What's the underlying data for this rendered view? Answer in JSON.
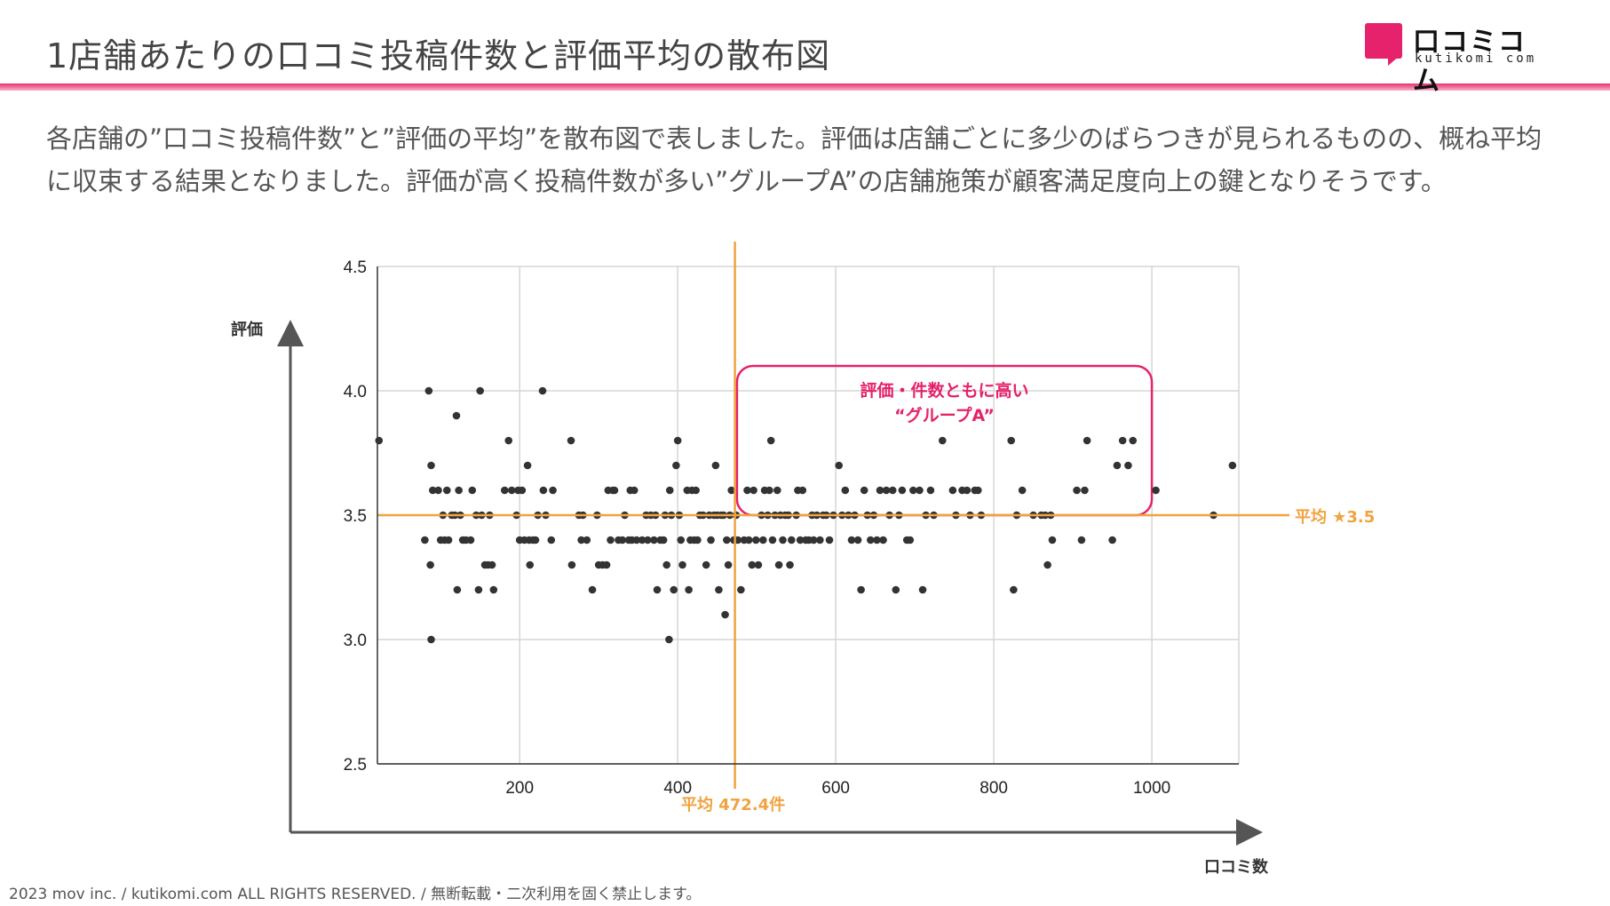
{
  "header": {
    "title": "1店舗あたりの口コミ投稿件数と評価平均の散布図",
    "logo_name": "口コミコム",
    "logo_sub": "kutikomi com",
    "accent_color": "#e5226b"
  },
  "description": "各店舗の”口コミ投稿件数”と”評価の平均”を散布図で表しました。評価は店舗ごとに多少のばらつきが見られるものの、概ね平均に収束する結果となりました。評価が高く投稿件数が多い”グループA”の店舗施策が顧客満足度向上の鍵となりそうです。",
  "footer": "2023 mov inc. / kutikomi.com ALL RIGHTS RESERVED. / 無断転載・二次利用を固く禁止します。",
  "chart_data": {
    "type": "scatter",
    "title": "",
    "xlabel": "口コミ数",
    "ylabel": "評価",
    "xlim": [
      20,
      1110
    ],
    "ylim": [
      2.5,
      4.5
    ],
    "xticks": [
      "200",
      "400",
      "600",
      "800",
      "1000"
    ],
    "yticks": [
      "2.5",
      "3.0",
      "3.5",
      "4.0",
      "4.5"
    ],
    "grid": true,
    "point_color": "#333333",
    "mean_color": "#f0a340",
    "mean_x": 472.4,
    "mean_y": 3.5,
    "mean_x_label": "平均 472.4件",
    "mean_y_label": "平均 ★3.5",
    "group_box": {
      "x0": 475,
      "x1": 1000,
      "y0": 3.5,
      "y1": 4.1,
      "color": "#e5226b"
    },
    "annotation_line1": "評価・件数ともに高い",
    "annotation_line2": "“グループA”",
    "points": [
      [
        22,
        3.8
      ],
      [
        80,
        3.4
      ],
      [
        85,
        4.0
      ],
      [
        87,
        3.3
      ],
      [
        88,
        3.7
      ],
      [
        88,
        3.0
      ],
      [
        90,
        3.6
      ],
      [
        97,
        3.6
      ],
      [
        100,
        3.4
      ],
      [
        103,
        3.5
      ],
      [
        105,
        3.4
      ],
      [
        108,
        3.6
      ],
      [
        110,
        3.4
      ],
      [
        114,
        3.5
      ],
      [
        118,
        3.5
      ],
      [
        120,
        3.9
      ],
      [
        121,
        3.2
      ],
      [
        123,
        3.6
      ],
      [
        125,
        3.5
      ],
      [
        128,
        3.4
      ],
      [
        132,
        3.4
      ],
      [
        138,
        3.4
      ],
      [
        140,
        3.6
      ],
      [
        145,
        3.5
      ],
      [
        148,
        3.2
      ],
      [
        150,
        4.0
      ],
      [
        152,
        3.5
      ],
      [
        156,
        3.3
      ],
      [
        160,
        3.3
      ],
      [
        162,
        3.5
      ],
      [
        165,
        3.3
      ],
      [
        167,
        3.2
      ],
      [
        181,
        3.6
      ],
      [
        186,
        3.8
      ],
      [
        190,
        3.6
      ],
      [
        196,
        3.5
      ],
      [
        198,
        3.6
      ],
      [
        200,
        3.4
      ],
      [
        203,
        3.6
      ],
      [
        206,
        3.4
      ],
      [
        210,
        3.7
      ],
      [
        212,
        3.4
      ],
      [
        213,
        3.3
      ],
      [
        217,
        3.4
      ],
      [
        220,
        3.4
      ],
      [
        223,
        3.5
      ],
      [
        229,
        4.0
      ],
      [
        230,
        3.6
      ],
      [
        233,
        3.5
      ],
      [
        240,
        3.4
      ],
      [
        242,
        3.6
      ],
      [
        265,
        3.8
      ],
      [
        266,
        3.3
      ],
      [
        275,
        3.5
      ],
      [
        278,
        3.4
      ],
      [
        280,
        3.5
      ],
      [
        285,
        3.4
      ],
      [
        292,
        3.2
      ],
      [
        298,
        3.5
      ],
      [
        300,
        3.3
      ],
      [
        305,
        3.3
      ],
      [
        310,
        3.3
      ],
      [
        312,
        3.6
      ],
      [
        315,
        3.4
      ],
      [
        318,
        3.6
      ],
      [
        320,
        3.6
      ],
      [
        325,
        3.4
      ],
      [
        330,
        3.4
      ],
      [
        333,
        3.5
      ],
      [
        338,
        3.4
      ],
      [
        340,
        3.6
      ],
      [
        342,
        3.4
      ],
      [
        345,
        3.6
      ],
      [
        348,
        3.4
      ],
      [
        355,
        3.4
      ],
      [
        360,
        3.5
      ],
      [
        362,
        3.4
      ],
      [
        366,
        3.5
      ],
      [
        370,
        3.4
      ],
      [
        372,
        3.5
      ],
      [
        374,
        3.2
      ],
      [
        378,
        3.4
      ],
      [
        382,
        3.4
      ],
      [
        384,
        3.5
      ],
      [
        386,
        3.3
      ],
      [
        389,
        3.0
      ],
      [
        390,
        3.6
      ],
      [
        392,
        3.5
      ],
      [
        395,
        3.2
      ],
      [
        398,
        3.7
      ],
      [
        400,
        3.8
      ],
      [
        402,
        3.5
      ],
      [
        404,
        3.4
      ],
      [
        406,
        3.3
      ],
      [
        412,
        3.6
      ],
      [
        414,
        3.2
      ],
      [
        416,
        3.4
      ],
      [
        418,
        3.6
      ],
      [
        421,
        3.4
      ],
      [
        423,
        3.6
      ],
      [
        425,
        3.4
      ],
      [
        428,
        3.5
      ],
      [
        432,
        3.5
      ],
      [
        436,
        3.3
      ],
      [
        440,
        3.5
      ],
      [
        442,
        3.4
      ],
      [
        446,
        3.5
      ],
      [
        448,
        3.7
      ],
      [
        450,
        3.5
      ],
      [
        452,
        3.2
      ],
      [
        455,
        3.5
      ],
      [
        458,
        3.5
      ],
      [
        460,
        3.1
      ],
      [
        462,
        3.4
      ],
      [
        464,
        3.3
      ],
      [
        466,
        3.5
      ],
      [
        468,
        3.6
      ],
      [
        471,
        3.4
      ],
      [
        474,
        3.5
      ],
      [
        476,
        3.4
      ],
      [
        480,
        3.2
      ],
      [
        484,
        3.4
      ],
      [
        488,
        3.6
      ],
      [
        490,
        3.4
      ],
      [
        494,
        3.3
      ],
      [
        496,
        3.6
      ],
      [
        499,
        3.4
      ],
      [
        502,
        3.3
      ],
      [
        506,
        3.5
      ],
      [
        508,
        3.4
      ],
      [
        510,
        3.6
      ],
      [
        514,
        3.5
      ],
      [
        516,
        3.6
      ],
      [
        518,
        3.8
      ],
      [
        520,
        3.4
      ],
      [
        523,
        3.5
      ],
      [
        526,
        3.6
      ],
      [
        528,
        3.3
      ],
      [
        530,
        3.5
      ],
      [
        533,
        3.4
      ],
      [
        536,
        3.5
      ],
      [
        540,
        3.5
      ],
      [
        542,
        3.3
      ],
      [
        544,
        3.4
      ],
      [
        550,
        3.5
      ],
      [
        552,
        3.6
      ],
      [
        555,
        3.4
      ],
      [
        558,
        3.6
      ],
      [
        562,
        3.4
      ],
      [
        566,
        3.4
      ],
      [
        570,
        3.5
      ],
      [
        572,
        3.4
      ],
      [
        576,
        3.5
      ],
      [
        580,
        3.4
      ],
      [
        584,
        3.5
      ],
      [
        588,
        3.5
      ],
      [
        592,
        3.4
      ],
      [
        597,
        3.5
      ],
      [
        604,
        3.7
      ],
      [
        608,
        3.5
      ],
      [
        612,
        3.6
      ],
      [
        616,
        3.5
      ],
      [
        620,
        3.4
      ],
      [
        624,
        3.5
      ],
      [
        628,
        3.4
      ],
      [
        632,
        3.2
      ],
      [
        636,
        3.6
      ],
      [
        640,
        3.5
      ],
      [
        644,
        3.4
      ],
      [
        648,
        3.5
      ],
      [
        652,
        3.4
      ],
      [
        656,
        3.6
      ],
      [
        660,
        3.4
      ],
      [
        664,
        3.6
      ],
      [
        668,
        3.5
      ],
      [
        672,
        3.6
      ],
      [
        676,
        3.2
      ],
      [
        680,
        3.5
      ],
      [
        684,
        3.6
      ],
      [
        690,
        3.4
      ],
      [
        694,
        3.4
      ],
      [
        698,
        3.6
      ],
      [
        706,
        3.6
      ],
      [
        710,
        3.2
      ],
      [
        714,
        3.5
      ],
      [
        720,
        3.6
      ],
      [
        724,
        3.5
      ],
      [
        735,
        3.8
      ],
      [
        748,
        3.6
      ],
      [
        752,
        3.5
      ],
      [
        760,
        3.6
      ],
      [
        766,
        3.6
      ],
      [
        770,
        3.5
      ],
      [
        776,
        3.6
      ],
      [
        780,
        3.6
      ],
      [
        784,
        3.5
      ],
      [
        822,
        3.8
      ],
      [
        825,
        3.2
      ],
      [
        829,
        3.5
      ],
      [
        836,
        3.6
      ],
      [
        850,
        3.5
      ],
      [
        860,
        3.5
      ],
      [
        865,
        3.5
      ],
      [
        868,
        3.3
      ],
      [
        872,
        3.5
      ],
      [
        874,
        3.4
      ],
      [
        905,
        3.6
      ],
      [
        911,
        3.4
      ],
      [
        915,
        3.6
      ],
      [
        918,
        3.8
      ],
      [
        950,
        3.4
      ],
      [
        956,
        3.7
      ],
      [
        963,
        3.8
      ],
      [
        970,
        3.7
      ],
      [
        976,
        3.8
      ],
      [
        1005,
        3.6
      ],
      [
        1078,
        3.5
      ],
      [
        1102,
        3.7
      ]
    ]
  }
}
